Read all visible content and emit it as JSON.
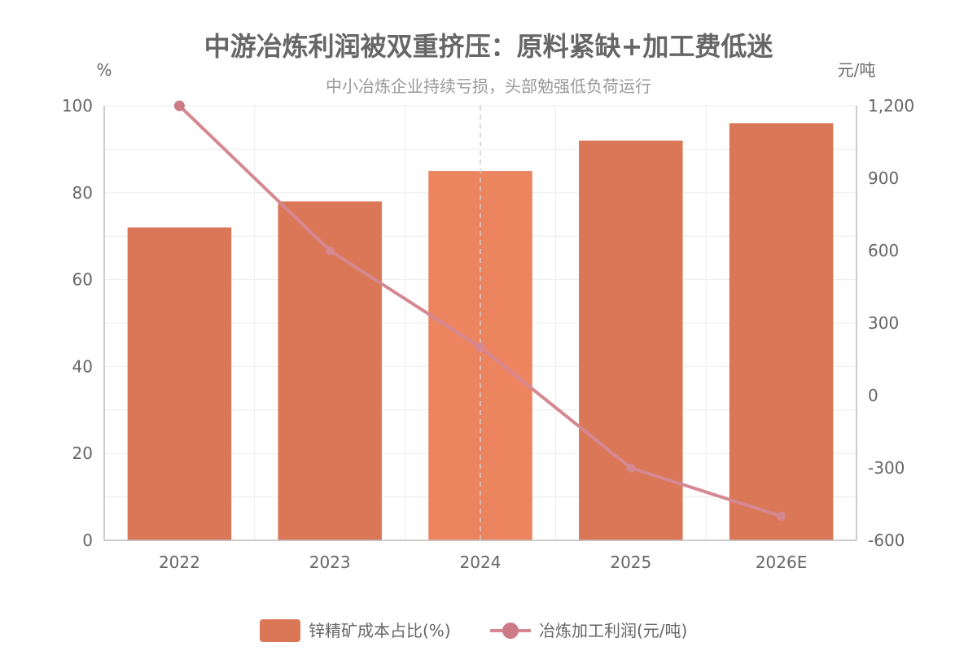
{
  "chart_data": {
    "type": "bar",
    "title": "中游冶炼利润被双重挤压：原料紧缺+加工费低迷",
    "subtitle": "中小冶炼企业持续亏损，头部勉强低负荷运行",
    "categories": [
      "2022",
      "2023",
      "2024",
      "2025",
      "2026E"
    ],
    "y_left": {
      "unit": "%",
      "ylim": [
        0,
        100
      ],
      "ticks": [
        "0",
        "20",
        "40",
        "60",
        "80",
        "100"
      ]
    },
    "y_right": {
      "unit": "元/吨",
      "ylim": [
        -600,
        1200
      ],
      "ticks": [
        "-600",
        "-300",
        "0",
        "300",
        "600",
        "900",
        "1,200"
      ]
    },
    "series": [
      {
        "name": "锌精矿成本占比(%)",
        "type": "bar",
        "axis": "left",
        "values": [
          72,
          78,
          85,
          92,
          96
        ]
      },
      {
        "name": "冶炼加工利润(元/吨)",
        "type": "line",
        "axis": "right",
        "values": [
          1200,
          600,
          200,
          -300,
          -500
        ]
      }
    ],
    "highlight_category": "2024",
    "grid": true,
    "legend_position": "bottom",
    "colors": {
      "bar": "#d97757",
      "bar_highlight": "#ec8460",
      "line": "#d68892",
      "marker": "#cc7a85",
      "grid": "#ececec",
      "axis": "#bbbbbb",
      "text": "#666666",
      "subtitle": "#999999"
    }
  }
}
